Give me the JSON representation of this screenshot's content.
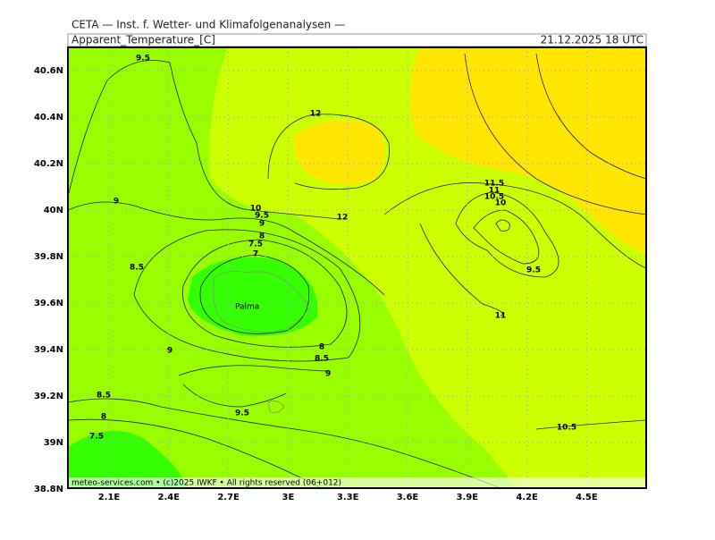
{
  "header": {
    "institute": "CETA — Inst. f. Wetter- und Klimafolgenanalysen —",
    "parameter": "Apparent_Temperature_[C]",
    "valid_time": "21.12.2025 18 UTC"
  },
  "map": {
    "lat_labels": [
      "40.6N",
      "40.4N",
      "40.2N",
      "40N",
      "39.8N",
      "39.6N",
      "39.4N",
      "39.2N",
      "39N",
      "38.8N"
    ],
    "lon_labels": [
      "2.1E",
      "2.4E",
      "2.7E",
      "3E",
      "3.3E",
      "3.6E",
      "3.9E",
      "4.2E",
      "4.5E"
    ],
    "place": "Palma",
    "contour_labels": [
      "9.5",
      "12",
      "9",
      "10",
      "9.5",
      "12",
      "9",
      "8",
      "7.5",
      "7",
      "8.5",
      "9",
      "8",
      "8.5",
      "9",
      "8.5",
      "9.5",
      "8",
      "7.5",
      "11.5",
      "11",
      "10.5",
      "10",
      "9.5",
      "11",
      "10.5"
    ]
  },
  "footer": "meteo-services.com • (c)2025 IWKF • All rights reserved (06+012)"
}
